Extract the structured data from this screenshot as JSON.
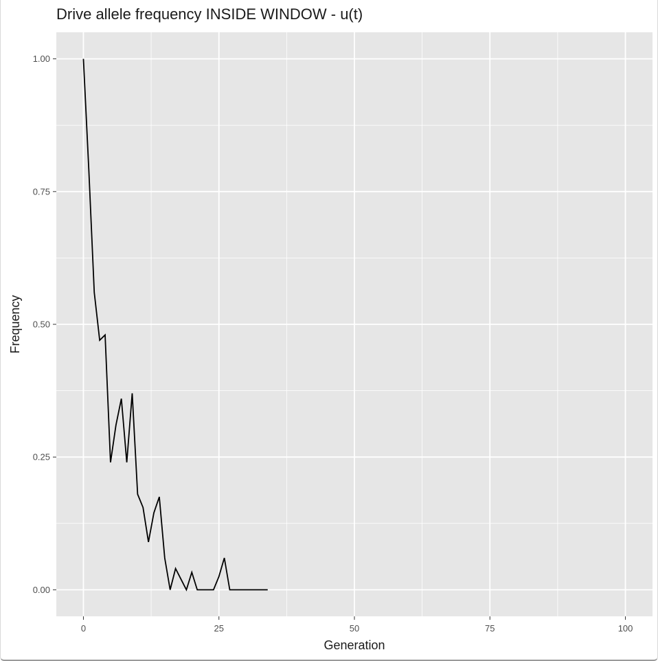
{
  "chart_data": {
    "type": "line",
    "title": "Drive allele frequency INSIDE WINDOW - u(t)",
    "xlabel": "Generation",
    "ylabel": "Frequency",
    "xlim": [
      -5,
      105
    ],
    "ylim": [
      -0.05,
      1.05
    ],
    "x_ticks": [
      0,
      25,
      50,
      75,
      100
    ],
    "x_tick_labels": [
      "0",
      "25",
      "50",
      "75",
      "100"
    ],
    "y_ticks": [
      0,
      0.25,
      0.5,
      0.75,
      1
    ],
    "y_tick_labels": [
      "0.00",
      "0.25",
      "0.50",
      "0.75",
      "1.00"
    ],
    "grid": true,
    "panel_color": "#e6e6e6",
    "grid_color": "#ffffff",
    "line_color": "#000000",
    "series": [
      {
        "x": [
          0,
          1,
          2,
          3,
          4,
          5,
          6,
          7,
          8,
          9,
          10,
          11,
          12,
          13,
          14,
          15,
          16,
          17,
          18,
          19,
          20,
          21,
          22,
          23,
          24,
          25,
          26,
          27,
          28,
          29,
          30,
          31,
          32,
          33,
          34
        ],
        "values": [
          1.0,
          0.79,
          0.56,
          0.47,
          0.48,
          0.24,
          0.31,
          0.36,
          0.24,
          0.37,
          0.18,
          0.155,
          0.09,
          0.145,
          0.175,
          0.06,
          0.0,
          0.04,
          0.02,
          0.0,
          0.033,
          0.0,
          0.0,
          0.0,
          0.0,
          0.025,
          0.06,
          0.0,
          0.0,
          0.0,
          0.0,
          0.0,
          0.0,
          0.0,
          0.0
        ]
      }
    ]
  }
}
